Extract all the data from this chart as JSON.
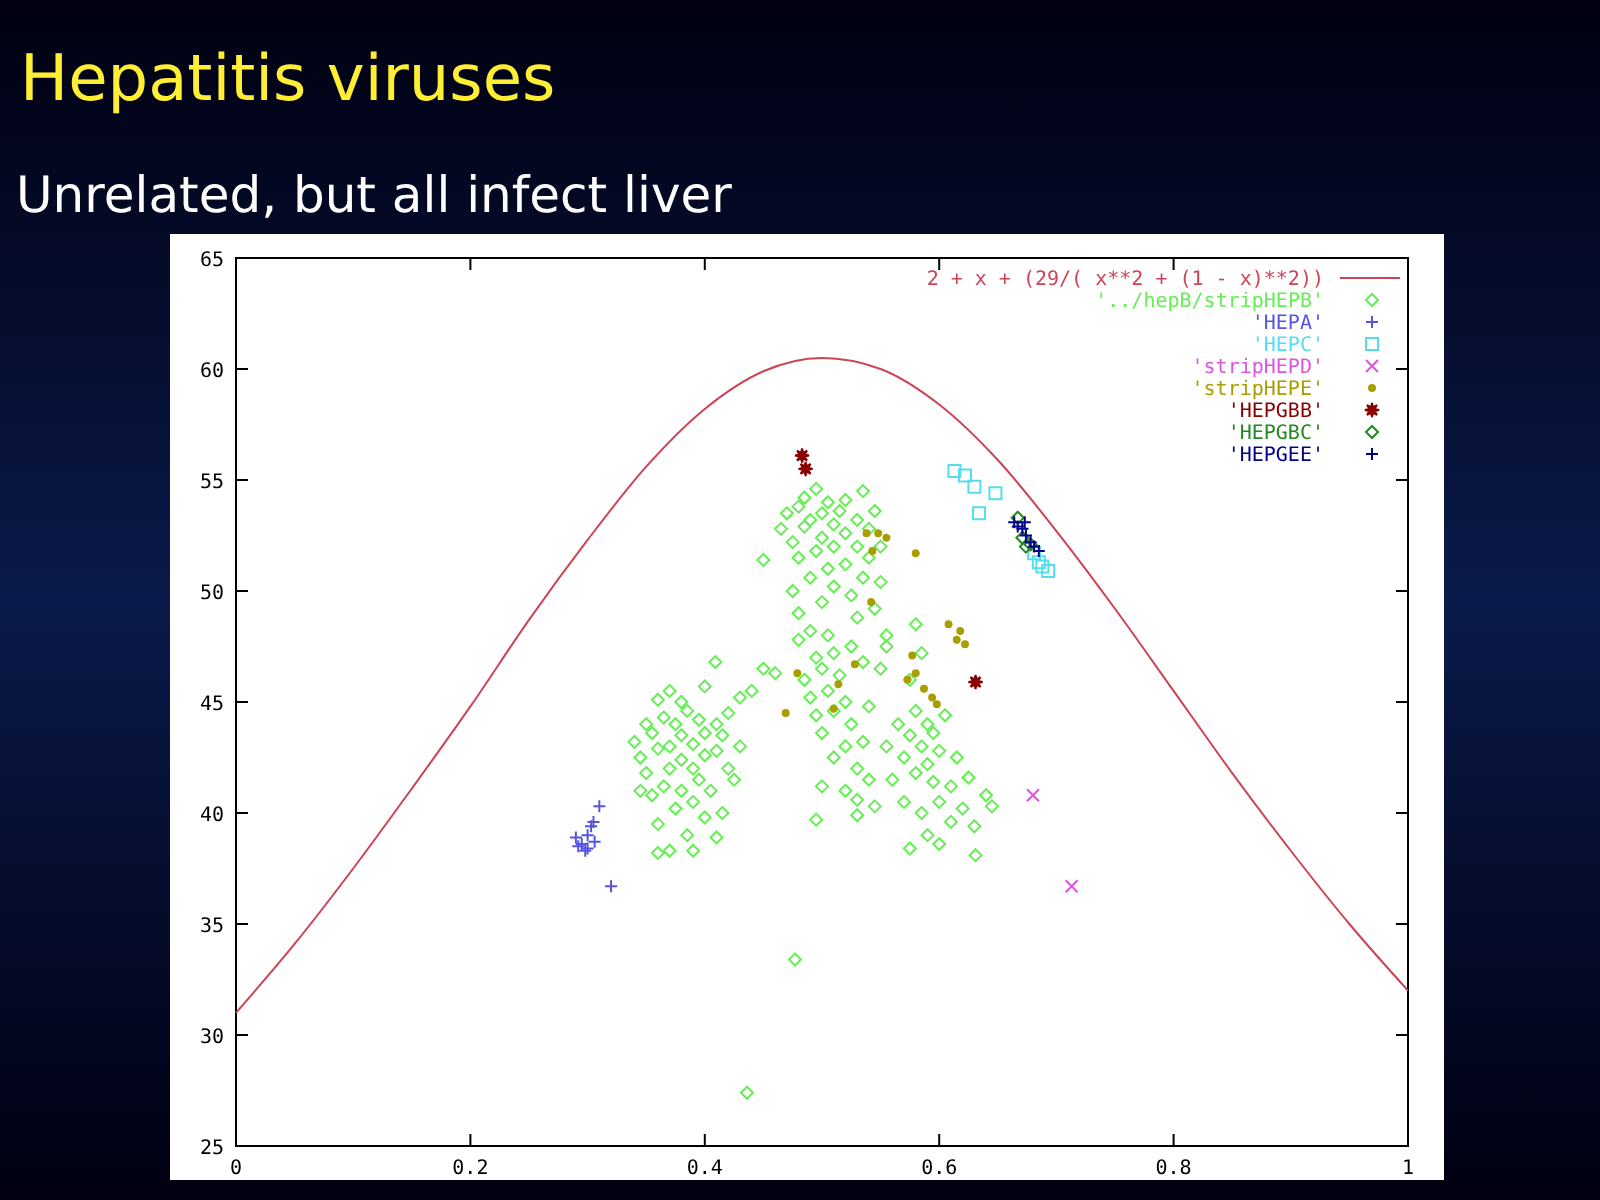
{
  "chart_data": {
    "type": "scatter",
    "title": "Hepatitis viruses",
    "subtitle": "Unrelated, but all infect liver",
    "xlim": [
      0,
      1
    ],
    "ylim": [
      25,
      65
    ],
    "xticks": [
      0,
      {
        "value": 0.2,
        "label": "0.2"
      },
      {
        "value": 0.4,
        "label": "0.4"
      },
      {
        "value": 0.6,
        "label": "0.6"
      },
      {
        "value": 0.8,
        "label": "0.8"
      },
      1
    ],
    "yticks": [
      25,
      30,
      35,
      40,
      45,
      50,
      55,
      60,
      65
    ],
    "grid": false,
    "legend": "top right",
    "series": [
      {
        "name": "2 + x + (29/( x**2 + (1 - x)**2))",
        "type": "line",
        "color": "#cc4455",
        "marker": "none",
        "line_style": "solid",
        "x": [
          0,
          0.05,
          0.1,
          0.15,
          0.2,
          0.25,
          0.3,
          0.35,
          0.4,
          0.45,
          0.5,
          0.55,
          0.6,
          0.65,
          0.7,
          0.75,
          0.8,
          0.85,
          0.9,
          0.95,
          1
        ],
        "values": [
          31,
          34.1,
          37.5,
          41.1,
          44.8,
          48.7,
          52.3,
          55.6,
          58.2,
          59.9,
          60.5,
          60,
          58.4,
          55.9,
          52.7,
          49.2,
          45.5,
          41.8,
          38.3,
          35,
          32
        ]
      },
      {
        "name": "'../hepB/stripHEPB'",
        "color": "#66ee55",
        "marker": "diamond",
        "x": [
          0.34,
          0.345,
          0.35,
          0.35,
          0.355,
          0.355,
          0.36,
          0.36,
          0.36,
          0.365,
          0.365,
          0.37,
          0.37,
          0.37,
          0.37,
          0.375,
          0.375,
          0.38,
          0.38,
          0.38,
          0.38,
          0.385,
          0.385,
          0.39,
          0.39,
          0.39,
          0.39,
          0.395,
          0.395,
          0.4,
          0.4,
          0.4,
          0.4,
          0.405,
          0.41,
          0.41,
          0.415,
          0.415,
          0.42,
          0.42,
          0.425,
          0.43,
          0.43,
          0.36,
          0.345,
          0.41,
          0.465,
          0.47,
          0.475,
          0.48,
          0.48,
          0.485,
          0.485,
          0.49,
          0.49,
          0.495,
          0.495,
          0.5,
          0.5,
          0.5,
          0.505,
          0.505,
          0.51,
          0.51,
          0.51,
          0.515,
          0.52,
          0.52,
          0.52,
          0.525,
          0.53,
          0.53,
          0.535,
          0.535,
          0.54,
          0.54,
          0.545,
          0.545,
          0.55,
          0.55,
          0.475,
          0.48,
          0.53,
          0.48,
          0.485,
          0.49,
          0.49,
          0.495,
          0.495,
          0.5,
          0.5,
          0.505,
          0.505,
          0.51,
          0.51,
          0.51,
          0.515,
          0.52,
          0.52,
          0.52,
          0.525,
          0.525,
          0.53,
          0.53,
          0.535,
          0.535,
          0.54,
          0.54,
          0.545,
          0.53,
          0.55,
          0.555,
          0.5,
          0.495,
          0.565,
          0.57,
          0.57,
          0.575,
          0.575,
          0.58,
          0.58,
          0.58,
          0.585,
          0.585,
          0.585,
          0.59,
          0.59,
          0.59,
          0.595,
          0.595,
          0.6,
          0.6,
          0.6,
          0.605,
          0.61,
          0.61,
          0.615,
          0.62,
          0.625,
          0.63,
          0.56,
          0.555,
          0.575,
          0.64,
          0.645,
          0.436,
          0.477,
          0.45,
          0.409,
          0.631,
          0.46,
          0.45,
          0.44,
          0.555
        ],
        "values": [
          43.2,
          42.5,
          44,
          41.8,
          43.6,
          40.8,
          42.9,
          45.1,
          39.5,
          44.3,
          41.2,
          43,
          42,
          45.5,
          38.3,
          44,
          40.2,
          43.5,
          42.4,
          41,
          45,
          39,
          44.6,
          43.1,
          42,
          40.5,
          38.3,
          44.2,
          41.5,
          43.6,
          42.6,
          45.7,
          39.8,
          41,
          44,
          42.8,
          40,
          43.5,
          42,
          44.5,
          41.5,
          43,
          45.2,
          38.2,
          41,
          38.9,
          52.8,
          53.5,
          52.2,
          53.8,
          51.5,
          54.2,
          52.9,
          53.2,
          50.6,
          54.6,
          51.8,
          53.5,
          52.4,
          49.5,
          54,
          51,
          53,
          52,
          50.2,
          53.6,
          52.6,
          51.2,
          54.1,
          49.8,
          53.2,
          52,
          54.5,
          50.6,
          52.8,
          51.5,
          49.2,
          53.6,
          52,
          50.4,
          50,
          49,
          48.8,
          47.8,
          46,
          48.2,
          45.2,
          47,
          44.4,
          46.5,
          43.6,
          48,
          45.5,
          47.2,
          44.6,
          42.5,
          46.2,
          45,
          43,
          41,
          47.5,
          44,
          42,
          40.6,
          43.2,
          46.8,
          41.5,
          44.8,
          40.3,
          39.9,
          46.5,
          48,
          41.2,
          39.7,
          44,
          42.5,
          40.5,
          43.5,
          46,
          41.8,
          44.6,
          48.5,
          40,
          43,
          47.2,
          42.2,
          44,
          39,
          41.4,
          43.6,
          40.5,
          42.8,
          38.6,
          44.4,
          41.2,
          39.6,
          42.5,
          40.2,
          41.6,
          39.4,
          41.5,
          43,
          38.4,
          40.8,
          40.3,
          27.4,
          33.4,
          51.4,
          46.8,
          38.1,
          46.3,
          46.5,
          45.5,
          47.5
        ]
      },
      {
        "name": "'HEPA'",
        "color": "#5555dd",
        "marker": "cross",
        "x": [
          0.31,
          0.32,
          0.29,
          0.295,
          0.3,
          0.3,
          0.303,
          0.305,
          0.298,
          0.306,
          0.292
        ],
        "values": [
          40.3,
          36.7,
          38.9,
          38.6,
          38.4,
          39,
          39.4,
          39.6,
          38.3,
          38.7,
          38.5
        ]
      },
      {
        "name": "'HEPC'",
        "color": "#55ddee",
        "marker": "square",
        "x": [
          0.613,
          0.622,
          0.63,
          0.648,
          0.634,
          0.681,
          0.685,
          0.688,
          0.693
        ],
        "values": [
          55.4,
          55.2,
          54.7,
          54.4,
          53.5,
          51.7,
          51.3,
          51.1,
          50.9
        ]
      },
      {
        "name": "'stripHEPD'",
        "color": "#dd55dd",
        "marker": "x",
        "x": [
          0.68,
          0.713
        ],
        "values": [
          40.8,
          36.7
        ]
      },
      {
        "name": "'stripHEPE'",
        "color": "#a89e00",
        "marker": "circle",
        "x": [
          0.538,
          0.548,
          0.555,
          0.543,
          0.58,
          0.608,
          0.615,
          0.622,
          0.618,
          0.577,
          0.58,
          0.573,
          0.587,
          0.594,
          0.598,
          0.479,
          0.514,
          0.51,
          0.469,
          0.528,
          0.542
        ],
        "values": [
          52.6,
          52.6,
          52.4,
          51.8,
          51.7,
          48.5,
          47.8,
          47.6,
          48.2,
          47.1,
          46.3,
          46,
          45.6,
          45.2,
          44.9,
          46.3,
          45.8,
          44.7,
          44.5,
          46.7,
          49.5
        ]
      },
      {
        "name": "'HEPGBB'",
        "color": "#880000",
        "marker": "star",
        "x": [
          0.483,
          0.486,
          0.631
        ],
        "values": [
          56.1,
          55.5,
          45.9
        ]
      },
      {
        "name": "'HEPGBC'",
        "color": "#228822",
        "marker": "diamond",
        "x": [
          0.667,
          0.674,
          0.678,
          0.671
        ],
        "values": [
          53.3,
          52,
          52.1,
          52.4
        ]
      },
      {
        "name": "'HEPGEE'",
        "color": "#000088",
        "marker": "cross",
        "x": [
          0.664,
          0.671,
          0.674,
          0.678,
          0.685,
          0.667,
          0.673,
          0.681
        ],
        "values": [
          53.1,
          52.8,
          52.5,
          52.2,
          51.8,
          52.9,
          53.1,
          52
        ]
      }
    ]
  }
}
